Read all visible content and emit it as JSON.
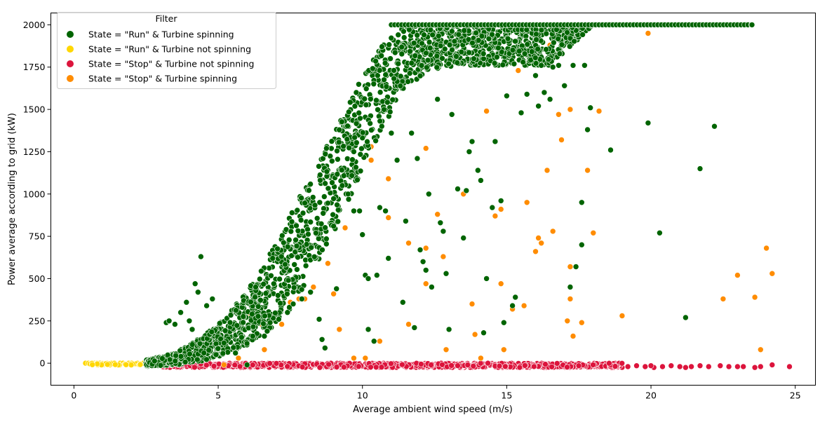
{
  "chart_data": {
    "type": "scatter",
    "title": "",
    "xlabel": "Average ambient wind speed (m/s)",
    "ylabel": "Power average according to grid (kW)",
    "xlim": [
      -0.8,
      25.7
    ],
    "ylim": [
      -130,
      2070
    ],
    "xticks": [
      0,
      5,
      10,
      15,
      20,
      25
    ],
    "yticks": [
      0,
      250,
      500,
      750,
      1000,
      1250,
      1500,
      1750,
      2000
    ],
    "grid": false,
    "legend": {
      "title": "Filter",
      "placement": "top-left"
    },
    "series": [
      {
        "name": "State = \"Run\" & Turbine spinning",
        "color": "#006400",
        "points": [
          [
            3.2,
            240
          ],
          [
            3.3,
            250
          ],
          [
            3.5,
            230
          ],
          [
            3.7,
            300
          ],
          [
            3.9,
            360
          ],
          [
            4.0,
            250
          ],
          [
            4.1,
            200
          ],
          [
            4.2,
            470
          ],
          [
            4.3,
            420
          ],
          [
            4.4,
            630
          ],
          [
            4.6,
            340
          ],
          [
            4.8,
            380
          ],
          [
            5.2,
            120
          ],
          [
            5.6,
            60
          ],
          [
            6.0,
            -10
          ],
          [
            6.3,
            450
          ],
          [
            6.6,
            160
          ],
          [
            6.8,
            240
          ],
          [
            7.1,
            260
          ],
          [
            7.4,
            300
          ],
          [
            7.6,
            350
          ],
          [
            7.9,
            380
          ],
          [
            8.2,
            420
          ],
          [
            8.5,
            260
          ],
          [
            8.6,
            140
          ],
          [
            8.7,
            90
          ],
          [
            9.0,
            810
          ],
          [
            9.1,
            440
          ],
          [
            9.3,
            1050
          ],
          [
            9.5,
            1000
          ],
          [
            9.7,
            900
          ],
          [
            9.9,
            900
          ],
          [
            10.0,
            760
          ],
          [
            10.1,
            520
          ],
          [
            10.2,
            500
          ],
          [
            10.2,
            200
          ],
          [
            10.4,
            130
          ],
          [
            10.5,
            520
          ],
          [
            10.6,
            920
          ],
          [
            10.8,
            900
          ],
          [
            10.9,
            620
          ],
          [
            11.0,
            1360
          ],
          [
            11.2,
            1200
          ],
          [
            11.4,
            360
          ],
          [
            11.5,
            840
          ],
          [
            11.7,
            1360
          ],
          [
            11.8,
            210
          ],
          [
            11.9,
            1210
          ],
          [
            12.0,
            670
          ],
          [
            12.1,
            600
          ],
          [
            12.2,
            550
          ],
          [
            12.3,
            1000
          ],
          [
            12.4,
            450
          ],
          [
            12.6,
            1560
          ],
          [
            12.7,
            830
          ],
          [
            12.8,
            780
          ],
          [
            12.9,
            530
          ],
          [
            13.0,
            200
          ],
          [
            13.1,
            1470
          ],
          [
            13.3,
            1030
          ],
          [
            13.5,
            740
          ],
          [
            13.6,
            1020
          ],
          [
            13.7,
            1250
          ],
          [
            13.8,
            1310
          ],
          [
            14.0,
            1140
          ],
          [
            14.1,
            1080
          ],
          [
            14.2,
            180
          ],
          [
            14.3,
            500
          ],
          [
            14.5,
            920
          ],
          [
            14.6,
            1310
          ],
          [
            14.8,
            960
          ],
          [
            14.9,
            240
          ],
          [
            15.0,
            1580
          ],
          [
            15.2,
            340
          ],
          [
            15.3,
            390
          ],
          [
            15.5,
            1480
          ],
          [
            15.7,
            1590
          ],
          [
            16.0,
            1700
          ],
          [
            16.1,
            1520
          ],
          [
            16.3,
            1600
          ],
          [
            16.5,
            1560
          ],
          [
            17.0,
            1640
          ],
          [
            17.2,
            450
          ],
          [
            17.4,
            570
          ],
          [
            17.6,
            700
          ],
          [
            17.6,
            950
          ],
          [
            17.8,
            1380
          ],
          [
            17.9,
            1510
          ],
          [
            18.6,
            1260
          ],
          [
            19.9,
            1420
          ],
          [
            20.3,
            770
          ],
          [
            21.2,
            270
          ],
          [
            21.7,
            1150
          ],
          [
            22.2,
            1400
          ],
          [
            23.5,
            2000
          ],
          [
            16.2,
            1760
          ],
          [
            16.8,
            1760
          ],
          [
            17.3,
            1760
          ],
          [
            17.7,
            1760
          ],
          [
            16.6,
            1750
          ]
        ],
        "curve_band": {
          "note": "dense band of points following the power curve",
          "x": [
            2.5,
            3.5,
            4.5,
            5.5,
            6.5,
            7.5,
            8.5,
            9.5,
            10.5,
            11.5,
            12.5,
            13.5,
            14.5,
            15.5,
            16.5,
            18,
            20,
            22,
            23.5
          ],
          "y_low": [
            -20,
            -10,
            10,
            60,
            150,
            320,
            600,
            950,
            1330,
            1640,
            1740,
            1760,
            1760,
            1760,
            1760,
            2000,
            2000,
            2000,
            2000
          ],
          "y_high": [
            20,
            60,
            160,
            320,
            560,
            880,
            1200,
            1540,
            1850,
            2000,
            2000,
            2000,
            2000,
            2000,
            2000,
            2000,
            2000,
            2000,
            2000
          ]
        }
      },
      {
        "name": "State = \"Run\" & Turbine not spinning",
        "color": "#FFD700",
        "points": [
          [
            0.4,
            0
          ],
          [
            0.5,
            0
          ],
          [
            0.6,
            0
          ],
          [
            0.7,
            0
          ],
          [
            0.8,
            0
          ],
          [
            0.9,
            0
          ],
          [
            1.0,
            -5
          ],
          [
            1.1,
            0
          ],
          [
            1.2,
            -5
          ],
          [
            1.3,
            0
          ],
          [
            1.4,
            0
          ],
          [
            1.5,
            -10
          ],
          [
            1.6,
            0
          ],
          [
            1.7,
            0
          ],
          [
            1.8,
            -5
          ],
          [
            1.9,
            0
          ],
          [
            2.0,
            0
          ],
          [
            2.1,
            -5
          ],
          [
            2.2,
            0
          ],
          [
            2.4,
            0
          ],
          [
            2.5,
            0
          ],
          [
            2.6,
            -10
          ],
          [
            2.3,
            -5
          ],
          [
            1.25,
            -10
          ],
          [
            0.95,
            -5
          ]
        ]
      },
      {
        "name": "State = \"Stop\" & Turbine not spinning",
        "color": "#DC143C",
        "points_band": {
          "note": "dense band of points near zero power",
          "x_range": [
            3.0,
            19.0
          ],
          "y_range": [
            -25,
            0
          ]
        },
        "points": [
          [
            19.2,
            -20
          ],
          [
            19.5,
            -15
          ],
          [
            19.8,
            -20
          ],
          [
            20.1,
            -25
          ],
          [
            20.4,
            -20
          ],
          [
            20.7,
            -15
          ],
          [
            21.0,
            -20
          ],
          [
            21.2,
            -25
          ],
          [
            21.7,
            -15
          ],
          [
            22.4,
            -15
          ],
          [
            22.7,
            -20
          ],
          [
            23.0,
            -20
          ],
          [
            23.2,
            -20
          ],
          [
            23.6,
            -25
          ],
          [
            23.8,
            -20
          ],
          [
            24.2,
            -10
          ],
          [
            24.8,
            -20
          ],
          [
            22.0,
            -20
          ],
          [
            20.0,
            -15
          ],
          [
            21.4,
            -20
          ]
        ]
      },
      {
        "name": "State = \"Stop\" & Turbine spinning",
        "color": "#FF8C00",
        "points": [
          [
            4.7,
            140
          ],
          [
            5.2,
            -10
          ],
          [
            5.7,
            30
          ],
          [
            6.1,
            280
          ],
          [
            6.5,
            230
          ],
          [
            6.6,
            80
          ],
          [
            7.2,
            230
          ],
          [
            7.5,
            360
          ],
          [
            7.8,
            380
          ],
          [
            8.0,
            380
          ],
          [
            8.3,
            450
          ],
          [
            8.8,
            590
          ],
          [
            9.0,
            410
          ],
          [
            9.2,
            200
          ],
          [
            9.4,
            800
          ],
          [
            9.7,
            30
          ],
          [
            10.1,
            30
          ],
          [
            10.3,
            1280
          ],
          [
            10.3,
            1200
          ],
          [
            10.6,
            130
          ],
          [
            10.9,
            860
          ],
          [
            10.9,
            1090
          ],
          [
            11.6,
            710
          ],
          [
            11.6,
            230
          ],
          [
            12.2,
            1270
          ],
          [
            12.2,
            680
          ],
          [
            12.2,
            470
          ],
          [
            12.6,
            880
          ],
          [
            12.8,
            630
          ],
          [
            12.9,
            80
          ],
          [
            13.5,
            1000
          ],
          [
            13.8,
            350
          ],
          [
            13.9,
            170
          ],
          [
            14.1,
            30
          ],
          [
            14.3,
            1490
          ],
          [
            14.6,
            870
          ],
          [
            14.8,
            470
          ],
          [
            14.8,
            910
          ],
          [
            14.9,
            80
          ],
          [
            15.2,
            320
          ],
          [
            15.4,
            1730
          ],
          [
            15.6,
            340
          ],
          [
            15.7,
            950
          ],
          [
            16.0,
            660
          ],
          [
            16.1,
            740
          ],
          [
            16.2,
            710
          ],
          [
            16.4,
            1140
          ],
          [
            16.6,
            780
          ],
          [
            16.8,
            1470
          ],
          [
            16.9,
            1320
          ],
          [
            17.1,
            250
          ],
          [
            17.2,
            1500
          ],
          [
            17.2,
            380
          ],
          [
            17.2,
            570
          ],
          [
            17.3,
            160
          ],
          [
            17.6,
            240
          ],
          [
            17.8,
            1140
          ],
          [
            18.0,
            770
          ],
          [
            18.2,
            1490
          ],
          [
            19.0,
            280
          ],
          [
            19.9,
            1950
          ],
          [
            22.5,
            380
          ],
          [
            23.0,
            520
          ],
          [
            23.6,
            390
          ],
          [
            23.8,
            80
          ],
          [
            24.0,
            680
          ],
          [
            24.2,
            530
          ],
          [
            16.5,
            1880
          ],
          [
            14.0,
            1920
          ],
          [
            15.0,
            1810
          ]
        ]
      }
    ]
  }
}
